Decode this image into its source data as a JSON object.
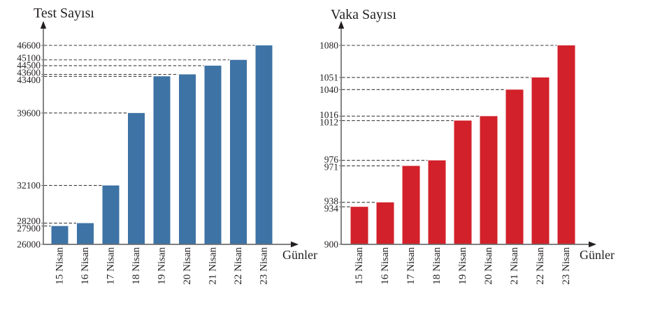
{
  "colors": {
    "axis_line": "#6D6E71",
    "grid_line": "#3A3A3A",
    "text": "#231F20",
    "background": "#FFFFFF",
    "bar_blue": "#3E73A5",
    "bar_red": "#D2212A"
  },
  "chart_data": [
    {
      "type": "bar",
      "ylabel": "Test Sayısı",
      "xlabel": "Günler",
      "bar_color": "#3E73A5",
      "categories": [
        "15 Nisan",
        "16 Nisan",
        "17 Nisan",
        "18 Nisan",
        "19 Nisan",
        "20 Nisan",
        "21 Nisan",
        "22 Nisan",
        "23 Nisan"
      ],
      "values": [
        27900,
        28200,
        32100,
        39600,
        43400,
        43600,
        44500,
        45100,
        46600
      ],
      "ylim": [
        26000,
        46600
      ],
      "yticks": [
        26000,
        27900,
        28200,
        32100,
        39600,
        43400,
        43600,
        44500,
        45100,
        46600
      ],
      "grid": "dashed horizontal leader line from y-axis to each bar top",
      "legend": "none"
    },
    {
      "type": "bar",
      "ylabel": "Vaka Sayısı",
      "xlabel": "Günler",
      "bar_color": "#D2212A",
      "categories": [
        "15 Nisan",
        "16 Nisan",
        "17 Nisan",
        "18 Nisan",
        "19 Nisan",
        "20 Nisan",
        "21 Nisan",
        "22 Nisan",
        "23 Nisan"
      ],
      "values": [
        934,
        938,
        971,
        976,
        1012,
        1016,
        1040,
        1051,
        1080
      ],
      "ylim": [
        900,
        1080
      ],
      "yticks": [
        900,
        934,
        938,
        971,
        976,
        1012,
        1016,
        1040,
        1051,
        1080
      ],
      "grid": "dashed horizontal leader line from y-axis to each bar top",
      "legend": "none"
    }
  ]
}
